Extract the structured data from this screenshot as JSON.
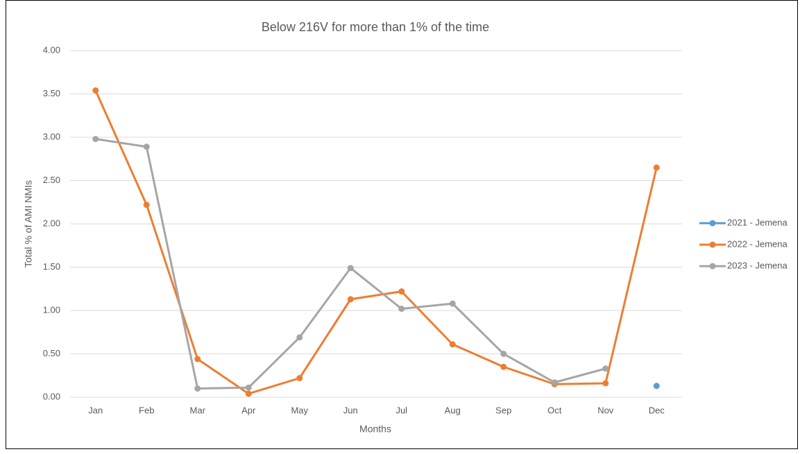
{
  "chart_data": {
    "type": "line",
    "title": "Below 216V for more than 1% of the time",
    "x_label": "Months",
    "y_label": "Total % of AMI NMIs",
    "categories": [
      "Jan",
      "Feb",
      "Mar",
      "Apr",
      "May",
      "Jun",
      "Jul",
      "Aug",
      "Sep",
      "Oct",
      "Nov",
      "Dec"
    ],
    "series": [
      {
        "name": "2021 - Jemena",
        "color": "#5b9bd5",
        "values": [
          null,
          null,
          null,
          null,
          null,
          null,
          null,
          null,
          null,
          null,
          null,
          0.13
        ]
      },
      {
        "name": "2022 - Jemena",
        "color": "#ed7d31",
        "values": [
          3.54,
          2.22,
          0.44,
          0.04,
          0.22,
          1.13,
          1.22,
          0.61,
          0.35,
          0.15,
          0.16,
          2.65
        ]
      },
      {
        "name": "2023 - Jemena",
        "color": "#a5a5a5",
        "values": [
          2.98,
          2.89,
          0.1,
          0.11,
          0.69,
          1.49,
          1.02,
          1.08,
          0.5,
          0.17,
          0.33,
          null
        ]
      }
    ],
    "ylim": [
      0,
      4
    ],
    "yticks": [
      {
        "value": 0,
        "label": "0.00"
      },
      {
        "value": 0.5,
        "label": "0.50"
      },
      {
        "value": 1,
        "label": "1.00"
      },
      {
        "value": 1.5,
        "label": "1.50"
      },
      {
        "value": 2,
        "label": "2.00"
      },
      {
        "value": 2.5,
        "label": "2.50"
      },
      {
        "value": 3,
        "label": "3.00"
      },
      {
        "value": 3.5,
        "label": "3.50"
      },
      {
        "value": 4,
        "label": "4.00"
      }
    ],
    "grid": true,
    "legend": "right"
  }
}
